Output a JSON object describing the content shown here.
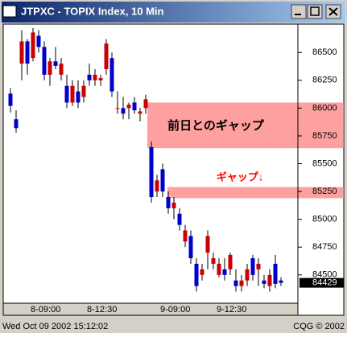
{
  "window": {
    "title": "JTPXC - TOPIX Index, 10 Min",
    "status_left": "Wed Oct 09 2002 15:12:02",
    "status_right": "CQG © 2002"
  },
  "chart_data": {
    "type": "candlestick",
    "categories": [
      null,
      null,
      null,
      "8-09:00",
      null,
      null,
      null,
      null,
      null,
      null,
      null,
      null,
      null,
      "8-12:30",
      null,
      null,
      null,
      null,
      null,
      null,
      null,
      null,
      null,
      null,
      null,
      null,
      "9-09:00",
      null,
      null,
      null,
      null,
      null,
      null,
      null,
      null,
      null,
      "9-12:30",
      null,
      null,
      null,
      null,
      null,
      null,
      null,
      null,
      null,
      null,
      null,
      null
    ],
    "open": [
      86130,
      85900,
      86400,
      86600,
      86450,
      86650,
      86550,
      86300,
      86420,
      86300,
      86200,
      86050,
      86150,
      86100,
      86300,
      86250,
      86250,
      86350,
      86450,
      86000,
      86000,
      86000,
      86050,
      85950,
      86000,
      85650,
      85250,
      85450,
      85200,
      85100,
      85050,
      84800,
      84850,
      84600,
      84500,
      84700,
      84600,
      84500,
      84550,
      84550,
      84450,
      84400,
      84450,
      84650,
      84550,
      84450,
      84400,
      84600,
      84450
    ],
    "high": [
      86180,
      85980,
      86700,
      86620,
      86720,
      86700,
      86600,
      86450,
      86550,
      86450,
      86300,
      86250,
      86250,
      86250,
      86400,
      86350,
      86300,
      86620,
      86500,
      86150,
      86100,
      86050,
      86100,
      86000,
      86120,
      85700,
      85400,
      85500,
      85250,
      85200,
      85100,
      84950,
      84900,
      84650,
      84600,
      84900,
      84700,
      84650,
      84650,
      84700,
      84550,
      84500,
      84600,
      84680,
      84650,
      84500,
      84550,
      84680,
      84480
    ],
    "low": [
      85960,
      85780,
      86250,
      86300,
      86420,
      86500,
      86250,
      86200,
      86350,
      86250,
      86000,
      86020,
      86000,
      86050,
      86200,
      86200,
      86200,
      86300,
      86100,
      85950,
      85900,
      85900,
      85950,
      85880,
      85950,
      85150,
      85200,
      85200,
      85050,
      85000,
      84900,
      84750,
      84600,
      84350,
      84450,
      84550,
      84550,
      84480,
      84450,
      84500,
      84350,
      84350,
      84400,
      84450,
      84400,
      84380,
      84350,
      84380,
      84400
    ],
    "close": [
      86020,
      85820,
      86600,
      86400,
      86680,
      86550,
      86300,
      86420,
      86380,
      86400,
      86050,
      86200,
      86050,
      86200,
      86250,
      86300,
      86270,
      86580,
      86150,
      86000,
      85950,
      86030,
      85980,
      85970,
      86080,
      85200,
      85350,
      85250,
      85100,
      85150,
      84950,
      84900,
      84650,
      84400,
      84550,
      84850,
      84650,
      84600,
      84500,
      84680,
      84400,
      84450,
      84550,
      84500,
      84600,
      84420,
      84500,
      84420,
      84429
    ],
    "up_color": "#cc0000",
    "down_color": "#0000cc",
    "ylim": [
      84260,
      86755
    ],
    "yticks": [
      84500,
      84750,
      85000,
      85250,
      85500,
      85750,
      86000,
      86250,
      86500
    ],
    "last_value": 84429,
    "annotations": [
      {
        "text": "前日とのギャップ",
        "range": [
          85640,
          86050
        ],
        "color": "#ff8080",
        "text_color": "#000000"
      },
      {
        "text": "ギャップ↓",
        "range": [
          85190,
          85290
        ],
        "color": "#ff8080",
        "text_color": "#ff0000"
      }
    ]
  }
}
